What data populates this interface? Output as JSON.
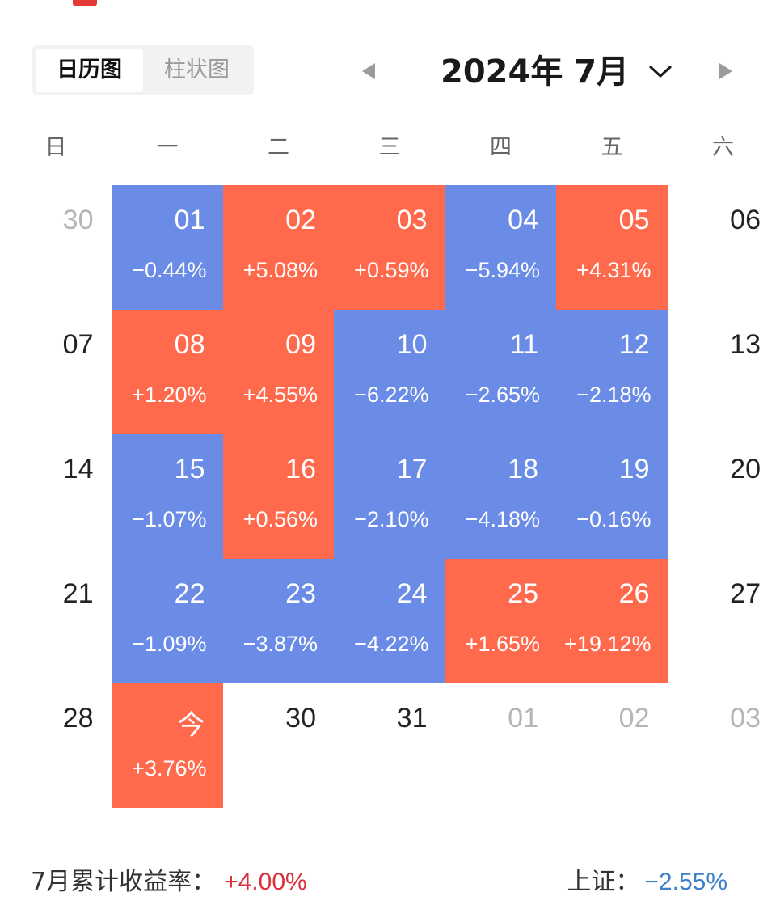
{
  "view_toggle": {
    "calendar_label": "日历图",
    "bar_label": "柱状图",
    "active": "calendar"
  },
  "header": {
    "month_label": "2024年 7月"
  },
  "weekdays": [
    "日",
    "一",
    "二",
    "三",
    "四",
    "五",
    "六"
  ],
  "colors": {
    "up": "#ff6a4d",
    "down": "#6a8be6",
    "positive_text": "#d9303b",
    "negative_text": "#3d80c8"
  },
  "weeks": [
    [
      {
        "day": "30",
        "pct": "",
        "state": "muted"
      },
      {
        "day": "01",
        "pct": "−0.44%",
        "state": "down"
      },
      {
        "day": "02",
        "pct": "+5.08%",
        "state": "up"
      },
      {
        "day": "03",
        "pct": "+0.59%",
        "state": "up"
      },
      {
        "day": "04",
        "pct": "−5.94%",
        "state": "down"
      },
      {
        "day": "05",
        "pct": "+4.31%",
        "state": "up"
      },
      {
        "day": "06",
        "pct": "",
        "state": "normal"
      }
    ],
    [
      {
        "day": "07",
        "pct": "",
        "state": "normal"
      },
      {
        "day": "08",
        "pct": "+1.20%",
        "state": "up"
      },
      {
        "day": "09",
        "pct": "+4.55%",
        "state": "up"
      },
      {
        "day": "10",
        "pct": "−6.22%",
        "state": "down"
      },
      {
        "day": "11",
        "pct": "−2.65%",
        "state": "down"
      },
      {
        "day": "12",
        "pct": "−2.18%",
        "state": "down"
      },
      {
        "day": "13",
        "pct": "",
        "state": "normal"
      }
    ],
    [
      {
        "day": "14",
        "pct": "",
        "state": "normal"
      },
      {
        "day": "15",
        "pct": "−1.07%",
        "state": "down"
      },
      {
        "day": "16",
        "pct": "+0.56%",
        "state": "up"
      },
      {
        "day": "17",
        "pct": "−2.10%",
        "state": "down"
      },
      {
        "day": "18",
        "pct": "−4.18%",
        "state": "down"
      },
      {
        "day": "19",
        "pct": "−0.16%",
        "state": "down"
      },
      {
        "day": "20",
        "pct": "",
        "state": "normal"
      }
    ],
    [
      {
        "day": "21",
        "pct": "",
        "state": "normal"
      },
      {
        "day": "22",
        "pct": "−1.09%",
        "state": "down"
      },
      {
        "day": "23",
        "pct": "−3.87%",
        "state": "down"
      },
      {
        "day": "24",
        "pct": "−4.22%",
        "state": "down"
      },
      {
        "day": "25",
        "pct": "+1.65%",
        "state": "up"
      },
      {
        "day": "26",
        "pct": "+19.12%",
        "state": "up"
      },
      {
        "day": "27",
        "pct": "",
        "state": "normal"
      }
    ],
    [
      {
        "day": "28",
        "pct": "",
        "state": "normal"
      },
      {
        "day": "今",
        "pct": "+3.76%",
        "state": "up"
      },
      {
        "day": "30",
        "pct": "",
        "state": "normal"
      },
      {
        "day": "31",
        "pct": "",
        "state": "normal"
      },
      {
        "day": "01",
        "pct": "",
        "state": "muted"
      },
      {
        "day": "02",
        "pct": "",
        "state": "muted"
      },
      {
        "day": "03",
        "pct": "",
        "state": "muted"
      }
    ]
  ],
  "footer": {
    "monthly_label": "7月累计收益率：",
    "monthly_value": "+4.00%",
    "index_label": "上证：",
    "index_value": "−2.55%"
  }
}
